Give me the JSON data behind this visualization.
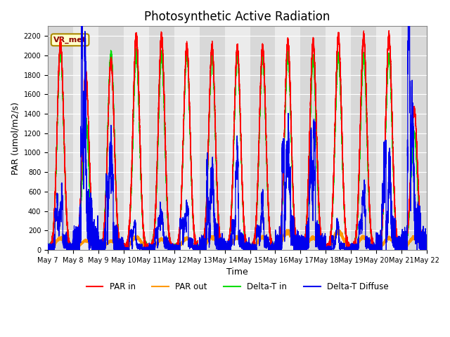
{
  "title": "Photosynthetic Active Radiation",
  "ylabel": "PAR (umol/m2/s)",
  "xlabel": "Time",
  "annotation": "VR_met",
  "ylim": [
    0,
    2300
  ],
  "yticks": [
    0,
    200,
    400,
    600,
    800,
    1000,
    1200,
    1400,
    1600,
    1800,
    2000,
    2200
  ],
  "legend_labels": [
    "PAR in",
    "PAR out",
    "Delta-T in",
    "Delta-T Diffuse"
  ],
  "legend_colors": [
    "#ff0000",
    "#ff9900",
    "#00cc00",
    "#0000ff"
  ],
  "plot_bg_color": "#ebebeb",
  "start_day": 7,
  "num_days": 15,
  "title_fontsize": 12,
  "label_fontsize": 9,
  "tick_fontsize": 7,
  "peaks_PAR_in": [
    2130,
    1820,
    1940,
    2200,
    2190,
    2090,
    2080,
    2080,
    2080,
    2130,
    2130,
    2190,
    2190,
    2190,
    1450
  ],
  "peaks_PAR_out": [
    120,
    95,
    90,
    130,
    110,
    120,
    130,
    130,
    130,
    185,
    125,
    185,
    130,
    120,
    130
  ],
  "peaks_dT_in": [
    2050,
    1350,
    2000,
    2010,
    2010,
    2010,
    2000,
    1980,
    1980,
    2000,
    1960,
    2000,
    2000,
    2000,
    1200
  ],
  "peaks_dT_diff": [
    350,
    1150,
    570,
    130,
    280,
    270,
    640,
    400,
    300,
    800,
    650,
    160,
    290,
    760,
    1050
  ]
}
